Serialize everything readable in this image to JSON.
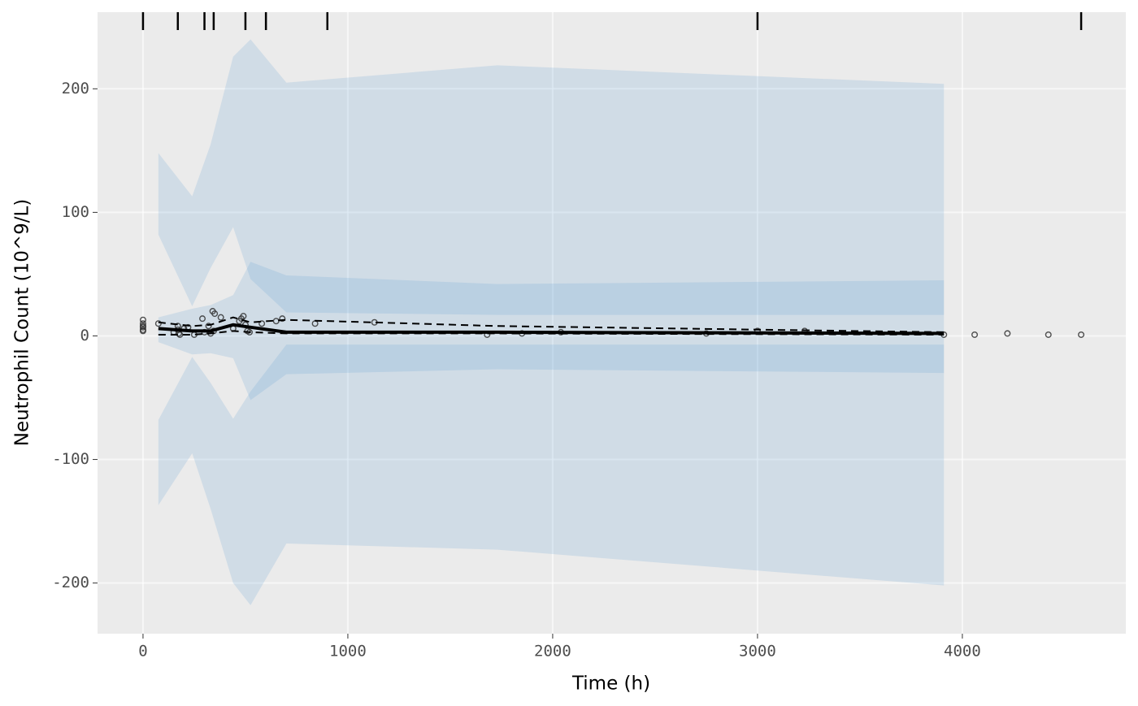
{
  "chart_data": {
    "type": "vpc",
    "xlabel": "Time (h)",
    "ylabel": "Neutrophil Count (10^9/L)",
    "xlim": [
      -222,
      4798
    ],
    "ylim": [
      -241,
      262
    ],
    "xticks": [
      0,
      1000,
      2000,
      3000,
      4000
    ],
    "yticks": [
      -200,
      -100,
      0,
      100,
      200
    ],
    "grid": true,
    "background": "#ebebeb",
    "bands": [
      {
        "color": "#5b9bd5",
        "x": [
          75,
          240,
          330,
          440,
          525,
          700,
          1730,
          3910
        ],
        "upper": [
          148,
          113,
          155,
          226,
          240,
          205,
          219,
          204
        ],
        "lower": [
          82,
          24,
          55,
          88,
          46,
          19,
          17,
          17
        ]
      },
      {
        "color": "#5b9bd5",
        "x": [
          75,
          240,
          330,
          440,
          525,
          700,
          1730,
          3910
        ],
        "upper": [
          15,
          22,
          25,
          33,
          60,
          49,
          42,
          45
        ],
        "lower": [
          -5,
          -15,
          -14,
          -18,
          -52,
          -31,
          -27,
          -30
        ]
      },
      {
        "color": "#5b9bd5",
        "x": [
          75,
          240,
          330,
          440,
          525,
          700,
          1730,
          3910
        ],
        "upper": [
          -68,
          -17,
          -38,
          -67,
          -45,
          -7,
          -7,
          -7
        ],
        "lower": [
          -137,
          -95,
          -140,
          -200,
          -218,
          -168,
          -173,
          -202
        ]
      }
    ],
    "series": [
      {
        "style": "dashed",
        "color": "#000000",
        "x": [
          75,
          240,
          330,
          440,
          525,
          700,
          1730,
          3910
        ],
        "values": [
          11,
          8,
          9,
          15,
          11,
          13,
          8,
          3
        ]
      },
      {
        "style": "solid",
        "color": "#000000",
        "x": [
          75,
          240,
          330,
          440,
          525,
          700,
          1730,
          3910
        ],
        "values": [
          6,
          4,
          4,
          9,
          7,
          3,
          3,
          2
        ]
      },
      {
        "style": "dashed",
        "color": "#000000",
        "x": [
          75,
          240,
          330,
          440,
          525,
          700,
          1730,
          3910
        ],
        "values": [
          1,
          1,
          2,
          4,
          3,
          2,
          2,
          1
        ]
      }
    ],
    "points": {
      "color": "#333333",
      "x": [
        0,
        0,
        0,
        0,
        0,
        0,
        75,
        150,
        170,
        170,
        175,
        180,
        200,
        220,
        250,
        290,
        300,
        320,
        330,
        340,
        345,
        350,
        380,
        440,
        470,
        480,
        490,
        500,
        510,
        520,
        580,
        650,
        680,
        840,
        1130,
        1680,
        1850,
        2040,
        2750,
        3000,
        3230,
        3910,
        4060,
        4220,
        4420,
        4580
      ],
      "y": [
        13,
        10,
        8,
        7,
        5,
        4,
        10,
        3,
        8,
        5,
        2,
        1,
        6,
        7,
        1,
        14,
        3,
        8,
        2,
        20,
        4,
        18,
        15,
        6,
        12,
        14,
        16,
        9,
        4,
        3,
        10,
        12,
        14,
        10,
        11,
        1,
        2,
        3,
        2,
        4,
        4,
        1,
        1,
        2,
        1,
        1
      ]
    },
    "rug": [
      0,
      170,
      300,
      345,
      500,
      600,
      900,
      3000,
      4580
    ]
  }
}
